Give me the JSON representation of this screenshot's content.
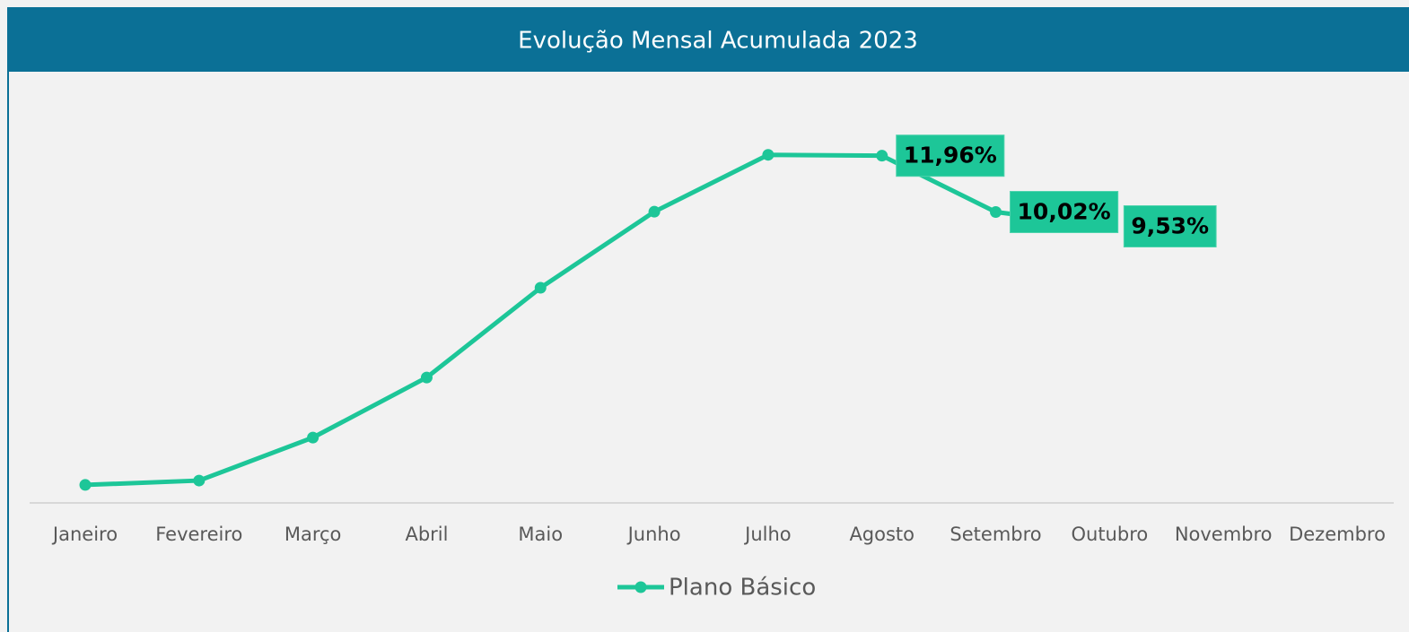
{
  "chart_data": {
    "type": "line",
    "title": "Evolução Mensal Acumulada 2023",
    "categories": [
      "Janeiro",
      "Fevereiro",
      "Março",
      "Abril",
      "Maio",
      "Junho",
      "Julho",
      "Agosto",
      "Setembro",
      "Outubro",
      "Novembro",
      "Dezembro"
    ],
    "series": [
      {
        "name": "Plano Básico",
        "color": "#1dc698",
        "values": [
          0.62,
          0.77,
          2.25,
          4.32,
          7.41,
          10.03,
          11.99,
          11.96,
          10.02,
          9.53,
          null,
          null
        ],
        "value_labels": [
          null,
          null,
          null,
          null,
          null,
          null,
          null,
          "11,96%",
          "10,02%",
          "9,53%",
          null,
          null
        ]
      }
    ],
    "ylim": [
      0,
      13
    ],
    "legend": "bottom"
  }
}
